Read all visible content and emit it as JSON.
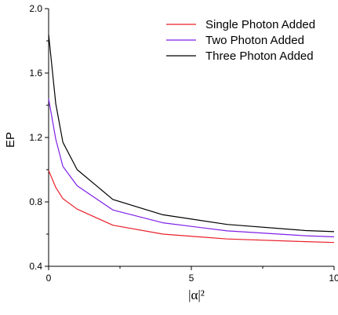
{
  "chart_data": {
    "type": "line",
    "title": "",
    "xlabel": "|α|²",
    "ylabel": "EP",
    "xlim": [
      0,
      10
    ],
    "ylim": [
      0.4,
      2.0
    ],
    "x_ticks": [
      "0",
      "5",
      "10"
    ],
    "y_ticks": [
      "0.4",
      "0.8",
      "1.2",
      "1.6",
      "2.0"
    ],
    "legend_position": "top-right",
    "grid": false,
    "series": [
      {
        "name": "Single Photon Added",
        "color": "#e8202a",
        "x": [
          0,
          0.25,
          0.5,
          1,
          2.25,
          4,
          6.25,
          9,
          10
        ],
        "y": [
          0.995,
          0.89,
          0.82,
          0.755,
          0.655,
          0.6,
          0.57,
          0.553,
          0.548
        ]
      },
      {
        "name": "Two Photon Added",
        "color": "#7f1fe8",
        "x": [
          0,
          0.25,
          0.5,
          1,
          2.25,
          4,
          6.25,
          9,
          10
        ],
        "y": [
          1.44,
          1.19,
          1.02,
          0.9,
          0.75,
          0.67,
          0.62,
          0.59,
          0.583
        ]
      },
      {
        "name": "Three Photon Added",
        "color": "#000000",
        "x": [
          0,
          0.25,
          0.5,
          1,
          2.25,
          4,
          6.25,
          9,
          10
        ],
        "y": [
          1.84,
          1.41,
          1.17,
          1.0,
          0.815,
          0.72,
          0.66,
          0.622,
          0.615
        ]
      }
    ]
  }
}
